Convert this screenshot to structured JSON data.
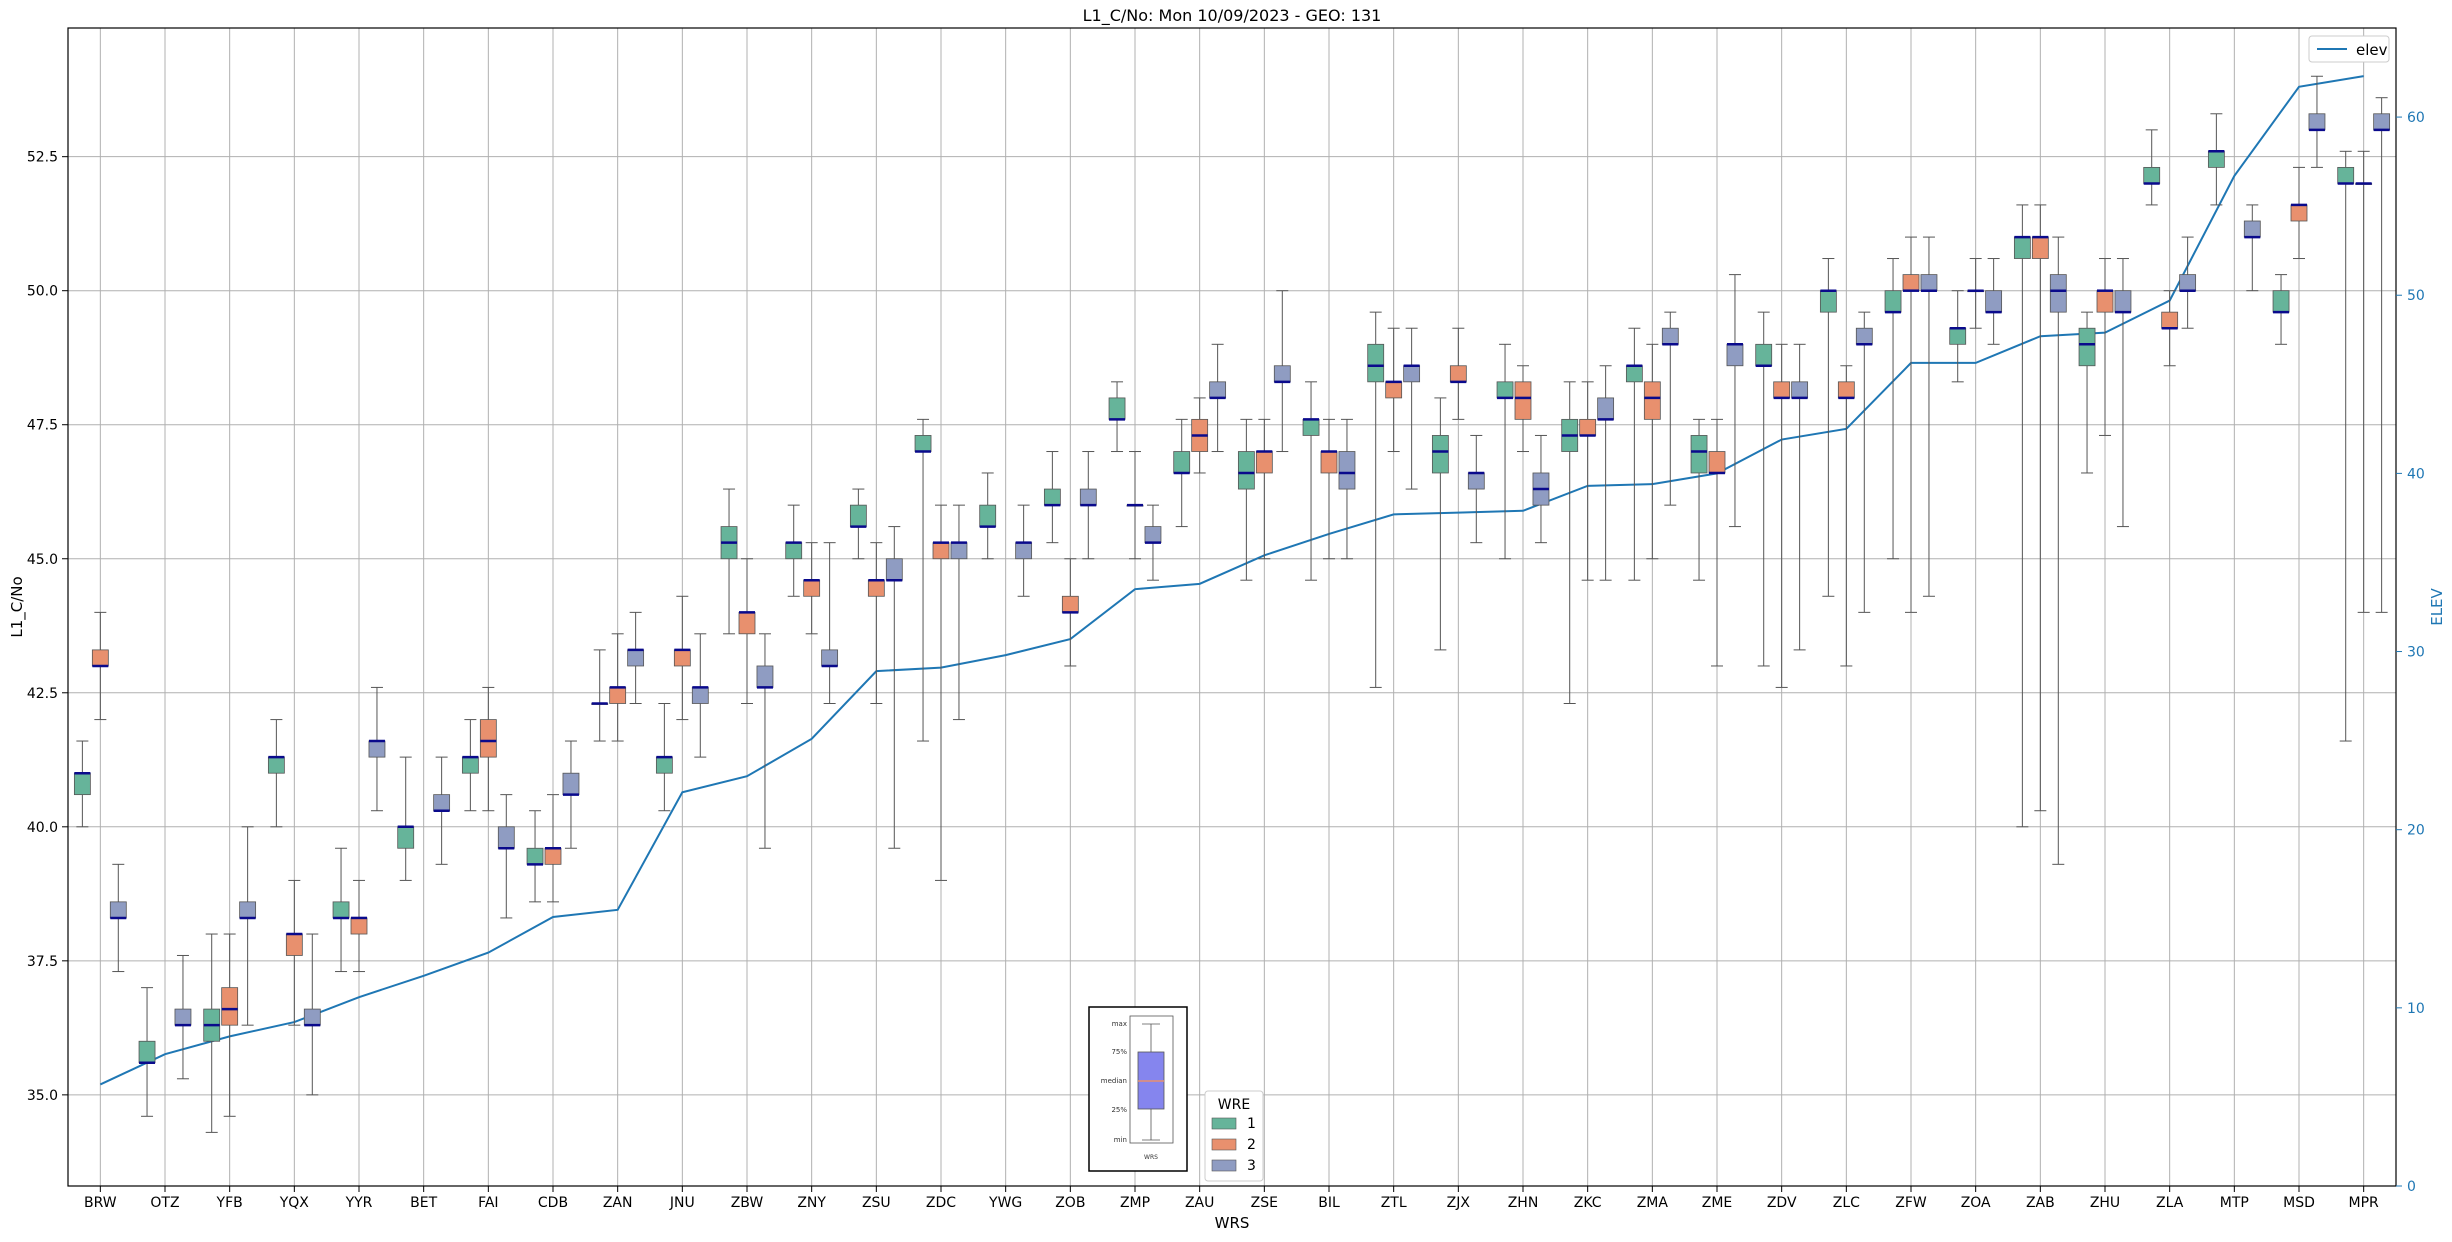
{
  "chart_data": {
    "type": "box",
    "title": "L1_C/No: Mon 10/09/2023 - GEO: 131",
    "xlabel": "WRS",
    "ylabel": "L1_C/No",
    "y2label": "ELEV",
    "ylim": [
      33.3,
      54.9
    ],
    "y2lim": [
      0,
      65
    ],
    "yticks": [
      35.0,
      37.5,
      40.0,
      42.5,
      45.0,
      47.5,
      50.0,
      52.5
    ],
    "y2ticks": [
      0,
      10,
      20,
      30,
      40,
      50,
      60
    ],
    "grid": true,
    "categories": [
      "BRW",
      "OTZ",
      "YFB",
      "YQX",
      "YYR",
      "BET",
      "FAI",
      "CDB",
      "ZAN",
      "JNU",
      "ZBW",
      "ZNY",
      "ZSU",
      "ZDC",
      "YWG",
      "ZOB",
      "ZMP",
      "ZAU",
      "ZSE",
      "BIL",
      "ZTL",
      "ZJX",
      "ZHN",
      "ZKC",
      "ZMA",
      "ZME",
      "ZDV",
      "ZLC",
      "ZFW",
      "ZOA",
      "ZAB",
      "ZHU",
      "ZLA",
      "MTP",
      "MSD",
      "MPR"
    ],
    "legend_wre": {
      "title": "WRE",
      "entries": [
        {
          "label": "1",
          "color": "#66b49a"
        },
        {
          "label": "2",
          "color": "#e8906e"
        },
        {
          "label": "3",
          "color": "#8f9cc2"
        }
      ],
      "placement": "bottom-center"
    },
    "legend_elev": {
      "label": "elev",
      "color": "#1f77b4",
      "placement": "top-right"
    },
    "box_key": {
      "labels": [
        "max",
        "75%",
        "median",
        "25%",
        "min"
      ],
      "caption": "WRS",
      "placement": "bottom-center"
    },
    "boxes": [
      {
        "cat": "BRW",
        "wre": 2,
        "min": 42.0,
        "q1": 43.0,
        "median": 43.0,
        "q3": 43.3,
        "max": 44.0
      },
      {
        "cat": "BRW",
        "wre": 1,
        "min": 40.0,
        "q1": 40.6,
        "median": 41.0,
        "q3": 41.0,
        "max": 41.6
      },
      {
        "cat": "BRW",
        "wre": 3,
        "min": 37.3,
        "q1": 38.3,
        "median": 38.3,
        "q3": 38.6,
        "max": 39.3
      },
      {
        "cat": "OTZ",
        "wre": 1,
        "min": 34.6,
        "q1": 35.6,
        "median": 35.6,
        "q3": 36.0,
        "max": 37.0
      },
      {
        "cat": "OTZ",
        "wre": 3,
        "min": 35.3,
        "q1": 36.3,
        "median": 36.3,
        "q3": 36.6,
        "max": 37.6
      },
      {
        "cat": "YFB",
        "wre": 1,
        "min": 34.3,
        "q1": 36.0,
        "median": 36.3,
        "q3": 36.6,
        "max": 38.0
      },
      {
        "cat": "YFB",
        "wre": 2,
        "min": 34.6,
        "q1": 36.3,
        "median": 36.6,
        "q3": 37.0,
        "max": 38.0
      },
      {
        "cat": "YFB",
        "wre": 3,
        "min": 36.3,
        "q1": 38.3,
        "median": 38.3,
        "q3": 38.6,
        "max": 40.0
      },
      {
        "cat": "YQX",
        "wre": 1,
        "min": 40.0,
        "q1": 41.0,
        "median": 41.3,
        "q3": 41.3,
        "max": 42.0
      },
      {
        "cat": "YQX",
        "wre": 2,
        "min": 36.3,
        "q1": 37.6,
        "median": 38.0,
        "q3": 38.0,
        "max": 39.0
      },
      {
        "cat": "YQX",
        "wre": 3,
        "min": 35.0,
        "q1": 36.3,
        "median": 36.3,
        "q3": 36.6,
        "max": 38.0
      },
      {
        "cat": "YYR",
        "wre": 1,
        "min": 37.3,
        "q1": 38.3,
        "median": 38.3,
        "q3": 38.6,
        "max": 39.6
      },
      {
        "cat": "YYR",
        "wre": 2,
        "min": 37.3,
        "q1": 38.0,
        "median": 38.3,
        "q3": 38.3,
        "max": 39.0
      },
      {
        "cat": "YYR",
        "wre": 3,
        "min": 40.3,
        "q1": 41.3,
        "median": 41.6,
        "q3": 41.6,
        "max": 42.6
      },
      {
        "cat": "BET",
        "wre": 1,
        "min": 39.0,
        "q1": 39.6,
        "median": 40.0,
        "q3": 40.0,
        "max": 41.3
      },
      {
        "cat": "BET",
        "wre": 3,
        "min": 39.3,
        "q1": 40.3,
        "median": 40.3,
        "q3": 40.6,
        "max": 41.3
      },
      {
        "cat": "FAI",
        "wre": 1,
        "min": 40.3,
        "q1": 41.0,
        "median": 41.3,
        "q3": 41.3,
        "max": 42.0
      },
      {
        "cat": "FAI",
        "wre": 2,
        "min": 40.3,
        "q1": 41.3,
        "median": 41.6,
        "q3": 42.0,
        "max": 42.6
      },
      {
        "cat": "FAI",
        "wre": 3,
        "min": 38.3,
        "q1": 39.6,
        "median": 39.6,
        "q3": 40.0,
        "max": 40.6
      },
      {
        "cat": "CDB",
        "wre": 1,
        "min": 38.6,
        "q1": 39.3,
        "median": 39.3,
        "q3": 39.6,
        "max": 40.3
      },
      {
        "cat": "CDB",
        "wre": 2,
        "min": 38.6,
        "q1": 39.3,
        "median": 39.6,
        "q3": 39.6,
        "max": 40.6
      },
      {
        "cat": "CDB",
        "wre": 3,
        "min": 39.6,
        "q1": 40.6,
        "median": 40.6,
        "q3": 41.0,
        "max": 41.6
      },
      {
        "cat": "ZAN",
        "wre": 1,
        "min": 41.6,
        "q1": 42.3,
        "median": 42.3,
        "q3": 42.3,
        "max": 43.3
      },
      {
        "cat": "ZAN",
        "wre": 2,
        "min": 41.6,
        "q1": 42.3,
        "median": 42.6,
        "q3": 42.6,
        "max": 43.6
      },
      {
        "cat": "ZAN",
        "wre": 3,
        "min": 42.3,
        "q1": 43.0,
        "median": 43.3,
        "q3": 43.3,
        "max": 44.0
      },
      {
        "cat": "JNU",
        "wre": 1,
        "min": 40.3,
        "q1": 41.0,
        "median": 41.3,
        "q3": 41.3,
        "max": 42.3
      },
      {
        "cat": "JNU",
        "wre": 2,
        "min": 42.0,
        "q1": 43.0,
        "median": 43.3,
        "q3": 43.3,
        "max": 44.3
      },
      {
        "cat": "JNU",
        "wre": 3,
        "min": 41.3,
        "q1": 42.3,
        "median": 42.6,
        "q3": 42.6,
        "max": 43.6
      },
      {
        "cat": "ZBW",
        "wre": 1,
        "min": 43.6,
        "q1": 45.0,
        "median": 45.3,
        "q3": 45.6,
        "max": 46.3
      },
      {
        "cat": "ZBW",
        "wre": 2,
        "min": 42.3,
        "q1": 43.6,
        "median": 44.0,
        "q3": 44.0,
        "max": 45.0
      },
      {
        "cat": "ZBW",
        "wre": 3,
        "min": 39.6,
        "q1": 42.6,
        "median": 42.6,
        "q3": 43.0,
        "max": 43.6
      },
      {
        "cat": "ZNY",
        "wre": 1,
        "min": 44.3,
        "q1": 45.0,
        "median": 45.3,
        "q3": 45.3,
        "max": 46.0
      },
      {
        "cat": "ZNY",
        "wre": 2,
        "min": 43.6,
        "q1": 44.3,
        "median": 44.6,
        "q3": 44.6,
        "max": 45.3
      },
      {
        "cat": "ZNY",
        "wre": 3,
        "min": 42.3,
        "q1": 43.0,
        "median": 43.0,
        "q3": 43.3,
        "max": 45.3
      },
      {
        "cat": "ZSU",
        "wre": 1,
        "min": 45.0,
        "q1": 45.6,
        "median": 45.6,
        "q3": 46.0,
        "max": 46.3
      },
      {
        "cat": "ZSU",
        "wre": 2,
        "min": 42.3,
        "q1": 44.3,
        "median": 44.6,
        "q3": 44.6,
        "max": 45.3
      },
      {
        "cat": "ZSU",
        "wre": 3,
        "min": 39.6,
        "q1": 44.6,
        "median": 44.6,
        "q3": 45.0,
        "max": 45.6
      },
      {
        "cat": "ZDC",
        "wre": 1,
        "min": 41.6,
        "q1": 47.0,
        "median": 47.0,
        "q3": 47.3,
        "max": 47.6
      },
      {
        "cat": "ZDC",
        "wre": 2,
        "min": 39.0,
        "q1": 45.0,
        "median": 45.3,
        "q3": 45.3,
        "max": 46.0
      },
      {
        "cat": "ZDC",
        "wre": 3,
        "min": 42.0,
        "q1": 45.0,
        "median": 45.3,
        "q3": 45.3,
        "max": 46.0
      },
      {
        "cat": "YWG",
        "wre": 1,
        "min": 45.0,
        "q1": 45.6,
        "median": 45.6,
        "q3": 46.0,
        "max": 46.6
      },
      {
        "cat": "YWG",
        "wre": 3,
        "min": 44.3,
        "q1": 45.0,
        "median": 45.3,
        "q3": 45.3,
        "max": 46.0
      },
      {
        "cat": "ZOB",
        "wre": 1,
        "min": 45.3,
        "q1": 46.0,
        "median": 46.0,
        "q3": 46.3,
        "max": 47.0
      },
      {
        "cat": "ZOB",
        "wre": 2,
        "min": 43.0,
        "q1": 44.0,
        "median": 44.0,
        "q3": 44.3,
        "max": 45.0
      },
      {
        "cat": "ZOB",
        "wre": 3,
        "min": 45.0,
        "q1": 46.0,
        "median": 46.0,
        "q3": 46.3,
        "max": 47.0
      },
      {
        "cat": "ZMP",
        "wre": 1,
        "min": 47.0,
        "q1": 47.6,
        "median": 47.6,
        "q3": 48.0,
        "max": 48.3
      },
      {
        "cat": "ZMP",
        "wre": 2,
        "min": 45.0,
        "q1": 46.0,
        "median": 46.0,
        "q3": 46.0,
        "max": 47.0
      },
      {
        "cat": "ZMP",
        "wre": 3,
        "min": 44.6,
        "q1": 45.3,
        "median": 45.3,
        "q3": 45.6,
        "max": 46.0
      },
      {
        "cat": "ZAU",
        "wre": 1,
        "min": 45.6,
        "q1": 46.6,
        "median": 46.6,
        "q3": 47.0,
        "max": 47.6
      },
      {
        "cat": "ZAU",
        "wre": 2,
        "min": 46.6,
        "q1": 47.0,
        "median": 47.3,
        "q3": 47.6,
        "max": 48.0
      },
      {
        "cat": "ZAU",
        "wre": 3,
        "min": 47.0,
        "q1": 48.0,
        "median": 48.0,
        "q3": 48.3,
        "max": 49.0
      },
      {
        "cat": "ZSE",
        "wre": 1,
        "min": 44.6,
        "q1": 46.3,
        "median": 46.6,
        "q3": 47.0,
        "max": 47.6
      },
      {
        "cat": "ZSE",
        "wre": 2,
        "min": 45.0,
        "q1": 46.6,
        "median": 47.0,
        "q3": 47.0,
        "max": 47.6
      },
      {
        "cat": "ZSE",
        "wre": 3,
        "min": 47.0,
        "q1": 48.3,
        "median": 48.3,
        "q3": 48.6,
        "max": 50.0
      },
      {
        "cat": "BIL",
        "wre": 1,
        "min": 44.6,
        "q1": 47.3,
        "median": 47.6,
        "q3": 47.6,
        "max": 48.3
      },
      {
        "cat": "BIL",
        "wre": 2,
        "min": 45.0,
        "q1": 46.6,
        "median": 47.0,
        "q3": 47.0,
        "max": 47.6
      },
      {
        "cat": "BIL",
        "wre": 3,
        "min": 45.0,
        "q1": 46.3,
        "median": 46.6,
        "q3": 47.0,
        "max": 47.6
      },
      {
        "cat": "ZTL",
        "wre": 1,
        "min": 42.6,
        "q1": 48.3,
        "median": 48.6,
        "q3": 49.0,
        "max": 49.6
      },
      {
        "cat": "ZTL",
        "wre": 2,
        "min": 47.0,
        "q1": 48.0,
        "median": 48.3,
        "q3": 48.3,
        "max": 49.3
      },
      {
        "cat": "ZTL",
        "wre": 3,
        "min": 46.3,
        "q1": 48.3,
        "median": 48.6,
        "q3": 48.6,
        "max": 49.3
      },
      {
        "cat": "ZJX",
        "wre": 1,
        "min": 43.3,
        "q1": 46.6,
        "median": 47.0,
        "q3": 47.3,
        "max": 48.0
      },
      {
        "cat": "ZJX",
        "wre": 2,
        "min": 47.6,
        "q1": 48.3,
        "median": 48.3,
        "q3": 48.6,
        "max": 49.3
      },
      {
        "cat": "ZJX",
        "wre": 3,
        "min": 45.3,
        "q1": 46.3,
        "median": 46.6,
        "q3": 46.6,
        "max": 47.3
      },
      {
        "cat": "ZHN",
        "wre": 1,
        "min": 45.0,
        "q1": 48.0,
        "median": 48.0,
        "q3": 48.3,
        "max": 49.0
      },
      {
        "cat": "ZHN",
        "wre": 2,
        "min": 47.0,
        "q1": 47.6,
        "median": 48.0,
        "q3": 48.3,
        "max": 48.6
      },
      {
        "cat": "ZHN",
        "wre": 3,
        "min": 45.3,
        "q1": 46.0,
        "median": 46.3,
        "q3": 46.6,
        "max": 47.3
      },
      {
        "cat": "ZKC",
        "wre": 1,
        "min": 42.3,
        "q1": 47.0,
        "median": 47.3,
        "q3": 47.6,
        "max": 48.3
      },
      {
        "cat": "ZKC",
        "wre": 2,
        "min": 44.6,
        "q1": 47.3,
        "median": 47.3,
        "q3": 47.6,
        "max": 48.3
      },
      {
        "cat": "ZKC",
        "wre": 3,
        "min": 44.6,
        "q1": 47.6,
        "median": 47.6,
        "q3": 48.0,
        "max": 48.6
      },
      {
        "cat": "ZMA",
        "wre": 1,
        "min": 44.6,
        "q1": 48.3,
        "median": 48.6,
        "q3": 48.6,
        "max": 49.3
      },
      {
        "cat": "ZMA",
        "wre": 2,
        "min": 45.0,
        "q1": 47.6,
        "median": 48.0,
        "q3": 48.3,
        "max": 49.0
      },
      {
        "cat": "ZMA",
        "wre": 3,
        "min": 46.0,
        "q1": 49.0,
        "median": 49.0,
        "q3": 49.3,
        "max": 49.6
      },
      {
        "cat": "ZME",
        "wre": 1,
        "min": 44.6,
        "q1": 46.6,
        "median": 47.0,
        "q3": 47.3,
        "max": 47.6
      },
      {
        "cat": "ZME",
        "wre": 2,
        "min": 43.0,
        "q1": 46.6,
        "median": 46.6,
        "q3": 47.0,
        "max": 47.6
      },
      {
        "cat": "ZME",
        "wre": 3,
        "min": 45.6,
        "q1": 48.6,
        "median": 49.0,
        "q3": 49.0,
        "max": 50.3
      },
      {
        "cat": "ZDV",
        "wre": 1,
        "min": 43.0,
        "q1": 48.6,
        "median": 48.6,
        "q3": 49.0,
        "max": 49.6
      },
      {
        "cat": "ZDV",
        "wre": 2,
        "min": 42.6,
        "q1": 48.0,
        "median": 48.0,
        "q3": 48.3,
        "max": 49.0
      },
      {
        "cat": "ZDV",
        "wre": 3,
        "min": 43.3,
        "q1": 48.0,
        "median": 48.0,
        "q3": 48.3,
        "max": 49.0
      },
      {
        "cat": "ZLC",
        "wre": 1,
        "min": 44.3,
        "q1": 49.6,
        "median": 50.0,
        "q3": 50.0,
        "max": 50.6
      },
      {
        "cat": "ZLC",
        "wre": 2,
        "min": 43.0,
        "q1": 48.0,
        "median": 48.0,
        "q3": 48.3,
        "max": 48.6
      },
      {
        "cat": "ZLC",
        "wre": 3,
        "min": 44.0,
        "q1": 49.0,
        "median": 49.0,
        "q3": 49.3,
        "max": 49.6
      },
      {
        "cat": "ZFW",
        "wre": 1,
        "min": 45.0,
        "q1": 49.6,
        "median": 49.6,
        "q3": 50.0,
        "max": 50.6
      },
      {
        "cat": "ZFW",
        "wre": 2,
        "min": 44.0,
        "q1": 50.0,
        "median": 50.0,
        "q3": 50.3,
        "max": 51.0
      },
      {
        "cat": "ZFW",
        "wre": 3,
        "min": 44.3,
        "q1": 50.0,
        "median": 50.0,
        "q3": 50.3,
        "max": 51.0
      },
      {
        "cat": "ZOA",
        "wre": 1,
        "min": 48.3,
        "q1": 49.0,
        "median": 49.3,
        "q3": 49.3,
        "max": 50.0
      },
      {
        "cat": "ZOA",
        "wre": 2,
        "min": 49.3,
        "q1": 50.0,
        "median": 50.0,
        "q3": 50.0,
        "max": 50.6
      },
      {
        "cat": "ZOA",
        "wre": 3,
        "min": 49.0,
        "q1": 49.6,
        "median": 49.6,
        "q3": 50.0,
        "max": 50.6
      },
      {
        "cat": "ZAB",
        "wre": 1,
        "min": 40.0,
        "q1": 50.6,
        "median": 51.0,
        "q3": 51.0,
        "max": 51.6
      },
      {
        "cat": "ZAB",
        "wre": 2,
        "min": 40.3,
        "q1": 50.6,
        "median": 51.0,
        "q3": 51.0,
        "max": 51.6
      },
      {
        "cat": "ZAB",
        "wre": 3,
        "min": 39.3,
        "q1": 49.6,
        "median": 50.0,
        "q3": 50.3,
        "max": 51.0
      },
      {
        "cat": "ZHU",
        "wre": 1,
        "min": 46.6,
        "q1": 48.6,
        "median": 49.0,
        "q3": 49.3,
        "max": 49.6
      },
      {
        "cat": "ZHU",
        "wre": 2,
        "min": 47.3,
        "q1": 49.6,
        "median": 50.0,
        "q3": 50.0,
        "max": 50.6
      },
      {
        "cat": "ZHU",
        "wre": 3,
        "min": 45.6,
        "q1": 49.6,
        "median": 49.6,
        "q3": 50.0,
        "max": 50.6
      },
      {
        "cat": "ZLA",
        "wre": 1,
        "min": 51.6,
        "q1": 52.0,
        "median": 52.0,
        "q3": 52.3,
        "max": 53.0
      },
      {
        "cat": "ZLA",
        "wre": 2,
        "min": 48.6,
        "q1": 49.3,
        "median": 49.3,
        "q3": 49.6,
        "max": 50.0
      },
      {
        "cat": "ZLA",
        "wre": 3,
        "min": 49.3,
        "q1": 50.0,
        "median": 50.0,
        "q3": 50.3,
        "max": 51.0
      },
      {
        "cat": "MTP",
        "wre": 1,
        "min": 51.6,
        "q1": 52.3,
        "median": 52.6,
        "q3": 52.6,
        "max": 53.3
      },
      {
        "cat": "MTP",
        "wre": 3,
        "min": 50.0,
        "q1": 51.0,
        "median": 51.0,
        "q3": 51.3,
        "max": 51.6
      },
      {
        "cat": "MSD",
        "wre": 1,
        "min": 49.0,
        "q1": 49.6,
        "median": 49.6,
        "q3": 50.0,
        "max": 50.3
      },
      {
        "cat": "MSD",
        "wre": 2,
        "min": 50.6,
        "q1": 51.3,
        "median": 51.6,
        "q3": 51.6,
        "max": 52.3
      },
      {
        "cat": "MSD",
        "wre": 3,
        "min": 52.3,
        "q1": 53.0,
        "median": 53.0,
        "q3": 53.3,
        "max": 54.0
      },
      {
        "cat": "MPR",
        "wre": 1,
        "min": 41.6,
        "q1": 52.0,
        "median": 52.0,
        "q3": 52.3,
        "max": 52.6
      },
      {
        "cat": "MPR",
        "wre": 2,
        "min": 44.0,
        "q1": 52.0,
        "median": 52.0,
        "q3": 52.0,
        "max": 52.6
      },
      {
        "cat": "MPR",
        "wre": 3,
        "min": 44.0,
        "q1": 53.0,
        "median": 53.0,
        "q3": 53.3,
        "max": 53.6
      }
    ],
    "elev": {
      "name": "elev",
      "values": [
        5.7,
        7.4,
        8.4,
        9.2,
        10.6,
        11.8,
        13.1,
        15.1,
        15.5,
        22.1,
        23.0,
        25.1,
        28.9,
        29.1,
        29.8,
        30.7,
        33.5,
        33.8,
        35.4,
        36.6,
        37.7,
        37.8,
        37.9,
        39.3,
        39.4,
        40.0,
        41.9,
        42.5,
        46.2,
        46.2,
        47.7,
        47.9,
        49.7,
        56.7,
        61.7,
        62.3
      ]
    }
  }
}
